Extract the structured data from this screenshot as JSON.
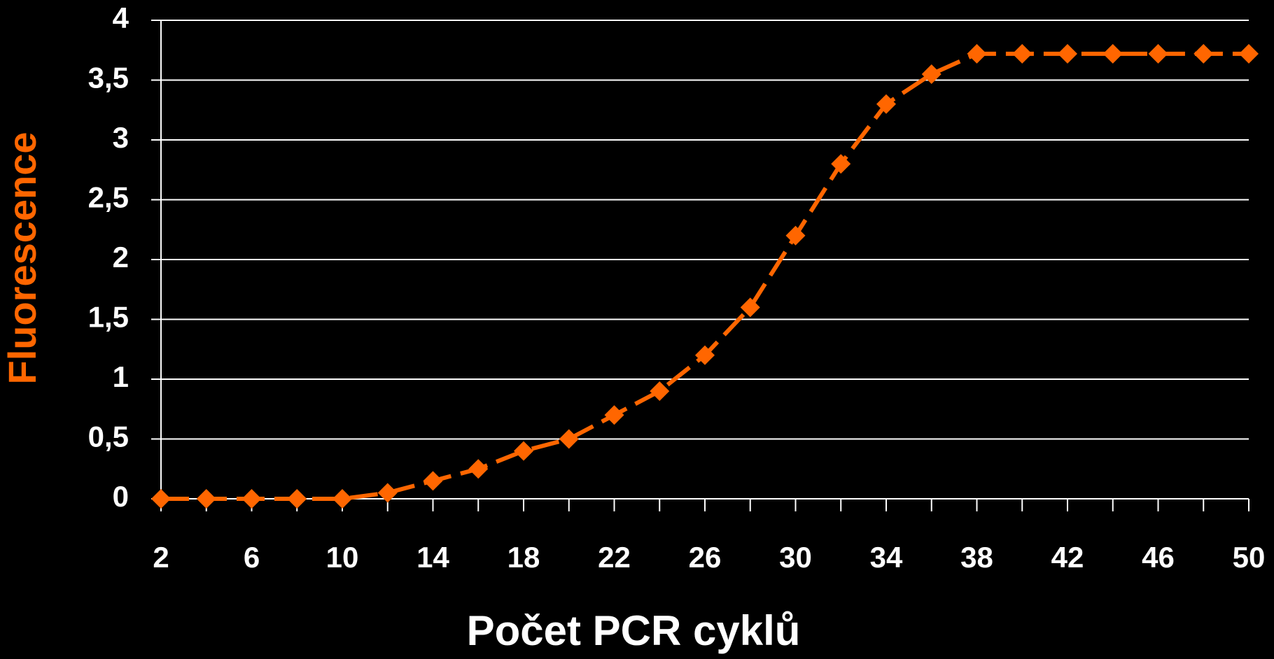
{
  "chart_data": {
    "type": "line",
    "xlabel": "Počet PCR cyklů",
    "ylabel": "Fluorescence",
    "x": [
      2,
      4,
      6,
      8,
      10,
      12,
      14,
      16,
      18,
      20,
      22,
      24,
      26,
      28,
      30,
      32,
      34,
      36,
      38,
      40,
      42,
      44,
      46,
      48,
      50
    ],
    "series": [
      {
        "color": "#ff6600",
        "values": [
          0,
          0,
          0,
          0,
          0,
          0.05,
          0.15,
          0.25,
          0.4,
          0.5,
          0.7,
          0.9,
          1.2,
          1.6,
          2.2,
          2.8,
          3.3,
          3.55,
          3.72,
          3.72,
          3.72,
          3.72,
          3.72,
          3.72,
          3.72
        ]
      }
    ],
    "xlim": [
      2,
      50
    ],
    "xticks": [
      2,
      6,
      10,
      14,
      18,
      22,
      26,
      30,
      34,
      38,
      42,
      46,
      50
    ],
    "ylim": [
      0,
      4
    ],
    "yticks": [
      0,
      {
        "value": 0.5,
        "label": "0,5"
      },
      1,
      {
        "value": 1.5,
        "label": "1,5"
      },
      2,
      {
        "value": 2.5,
        "label": "2,5"
      },
      3,
      {
        "value": 3.5,
        "label": "3,5"
      },
      4
    ],
    "grid": true
  }
}
